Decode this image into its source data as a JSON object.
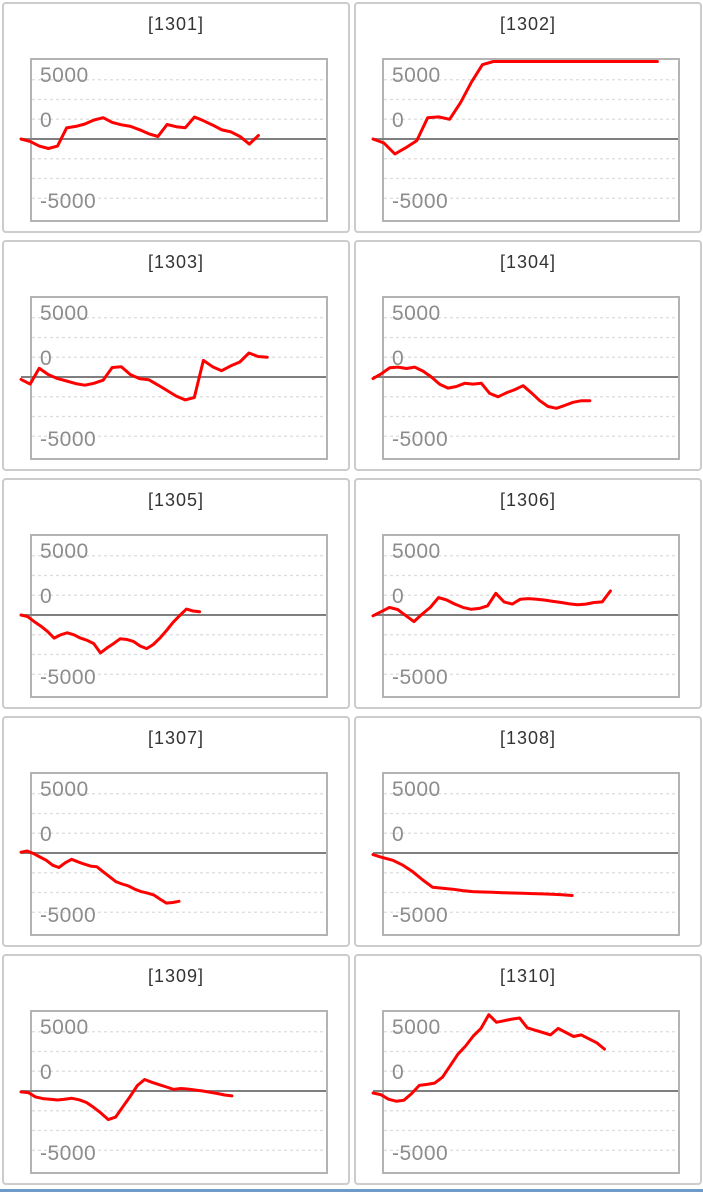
{
  "axis": {
    "top_label": "5000",
    "zero_label": "0",
    "bottom_label": "-5000",
    "ymax": 5000,
    "ymin": -5000,
    "grid_step": 1250,
    "grid_style": "dashed"
  },
  "colors": {
    "series_red": "#ff0000",
    "zero_line": "#7f7f7f",
    "grid_line": "#dcdcdc",
    "axis_label": "#8c8c8c",
    "title_text": "#333333",
    "panel_border": "#cccccc",
    "plot_border": "#b3b3b3",
    "footer_blue": "#6f9bc8"
  },
  "chart_data": [
    {
      "type": "line",
      "title": "[1301]",
      "ylim": [
        -5000,
        5000
      ],
      "end_fraction": 0.77,
      "values": [
        0,
        -150,
        -450,
        -600,
        -450,
        700,
        800,
        950,
        1200,
        1350,
        1050,
        900,
        800,
        580,
        330,
        160,
        920,
        780,
        715,
        1390,
        1150,
        880,
        575,
        450,
        150,
        -320,
        220
      ]
    },
    {
      "type": "line",
      "title": "[1302]",
      "ylim": [
        -5000,
        5000
      ],
      "end_fraction": 0.93,
      "values": [
        0,
        -250,
        -950,
        -550,
        -100,
        1350,
        1400,
        1250,
        2300,
        3600,
        4700,
        5200,
        5200,
        5200,
        5200,
        5200,
        5200,
        5200,
        5200,
        5200,
        5200,
        5200,
        5200,
        5200,
        5200,
        5200,
        5200
      ]
    },
    {
      "type": "line",
      "title": "[1303]",
      "ylim": [
        -5000,
        5000
      ],
      "end_fraction": 0.8,
      "values": [
        -150,
        -450,
        550,
        150,
        -100,
        -250,
        -420,
        -520,
        -400,
        -200,
        600,
        650,
        150,
        -100,
        -170,
        -500,
        -850,
        -1200,
        -1450,
        -1300,
        1050,
        650,
        400,
        700,
        950,
        1520,
        1300,
        1250
      ]
    },
    {
      "type": "line",
      "title": "[1304]",
      "ylim": [
        -5000,
        5000
      ],
      "end_fraction": 0.7,
      "values": [
        -100,
        200,
        580,
        625,
        540,
        625,
        375,
        0,
        -460,
        -700,
        -600,
        -400,
        -450,
        -400,
        -1040,
        -1250,
        -1000,
        -800,
        -550,
        -1000,
        -1500,
        -1870,
        -1980,
        -1800,
        -1600,
        -1500,
        -1500
      ]
    },
    {
      "type": "line",
      "title": "[1305]",
      "ylim": [
        -5000,
        5000
      ],
      "end_fraction": 0.57,
      "values": [
        0,
        -100,
        -420,
        -700,
        -1040,
        -1460,
        -1250,
        -1125,
        -1250,
        -1460,
        -1600,
        -1810,
        -2400,
        -2080,
        -1810,
        -1500,
        -1550,
        -1670,
        -1960,
        -2125,
        -1870,
        -1460,
        -980,
        -460,
        -40,
        375,
        250,
        200
      ]
    },
    {
      "type": "line",
      "title": "[1306]",
      "ylim": [
        -5000,
        5000
      ],
      "end_fraction": 0.77,
      "values": [
        -50,
        210,
        480,
        350,
        -40,
        -420,
        60,
        480,
        1100,
        950,
        690,
        480,
        360,
        420,
        580,
        1375,
        830,
        690,
        1000,
        1040,
        1000,
        940,
        860,
        790,
        700,
        650,
        690,
        790,
        830,
        1520
      ]
    },
    {
      "type": "line",
      "title": "[1307]",
      "ylim": [
        -5000,
        5000
      ],
      "end_fraction": 0.5,
      "values": [
        50,
        125,
        -40,
        -250,
        -460,
        -770,
        -920,
        -620,
        -400,
        -560,
        -700,
        -830,
        -870,
        -1190,
        -1500,
        -1810,
        -1960,
        -2080,
        -2290,
        -2440,
        -2540,
        -2650,
        -2920,
        -3170,
        -3130,
        -3060
      ]
    },
    {
      "type": "line",
      "title": "[1308]",
      "ylim": [
        -5000,
        5000
      ],
      "end_fraction": 0.64,
      "values": [
        -100,
        -300,
        -460,
        -770,
        -1190,
        -1710,
        -2170,
        -2230,
        -2290,
        -2380,
        -2440,
        -2470,
        -2490,
        -2510,
        -2530,
        -2550,
        -2570,
        -2590,
        -2610,
        -2640,
        -2690
      ]
    },
    {
      "type": "line",
      "title": "[1309]",
      "ylim": [
        -5000,
        5000
      ],
      "end_fraction": 0.68,
      "values": [
        -60,
        -100,
        -375,
        -480,
        -520,
        -570,
        -520,
        -460,
        -560,
        -730,
        -1040,
        -1400,
        -1810,
        -1650,
        -1000,
        -350,
        350,
        730,
        550,
        400,
        250,
        100,
        160,
        120,
        60,
        0,
        -80,
        -160,
        -250,
        -310
      ]
    },
    {
      "type": "line",
      "title": "[1310]",
      "ylim": [
        -5000,
        5000
      ],
      "end_fraction": 0.75,
      "values": [
        -125,
        -230,
        -520,
        -645,
        -580,
        -165,
        355,
        415,
        500,
        875,
        1600,
        2330,
        2850,
        3480,
        3960,
        4830,
        4350,
        4450,
        4550,
        4620,
        4000,
        3850,
        3700,
        3550,
        3960,
        3700,
        3450,
        3550,
        3300,
        3050,
        2650
      ]
    }
  ]
}
